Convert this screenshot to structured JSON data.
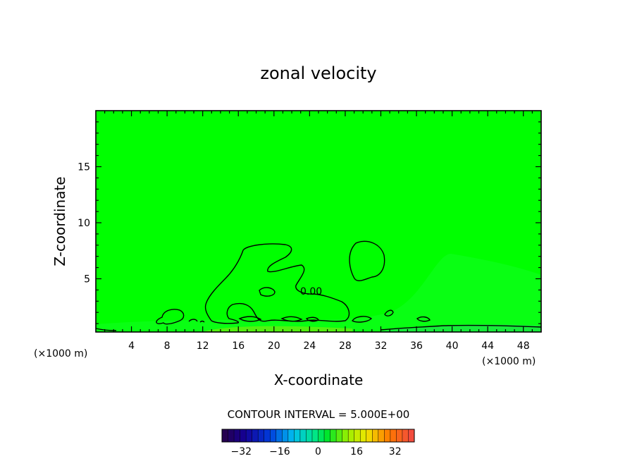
{
  "chart_data": {
    "type": "contour",
    "title": "zonal velocity",
    "xlabel": "X-coordinate",
    "ylabel": "Z-coordinate",
    "x_units": "(×1000 m)",
    "z_units": "(×1000 m)",
    "xlim": [
      0,
      50
    ],
    "ylim": [
      0.25,
      20
    ],
    "x_ticks": [
      4,
      8,
      12,
      16,
      20,
      24,
      28,
      32,
      36,
      40,
      44,
      48
    ],
    "y_ticks": [
      5,
      10,
      15
    ],
    "contour_label": "0.00",
    "contour_interval_text": "CONTOUR INTERVAL = 5.000E+00",
    "colorbar": {
      "min": -40,
      "max": 40,
      "interval": 5,
      "tick_values": [
        -32,
        -16,
        0,
        16,
        32
      ],
      "tick_labels": [
        "−32",
        "−16",
        "0",
        "16",
        "32"
      ]
    },
    "background_color": "#00ff00"
  }
}
